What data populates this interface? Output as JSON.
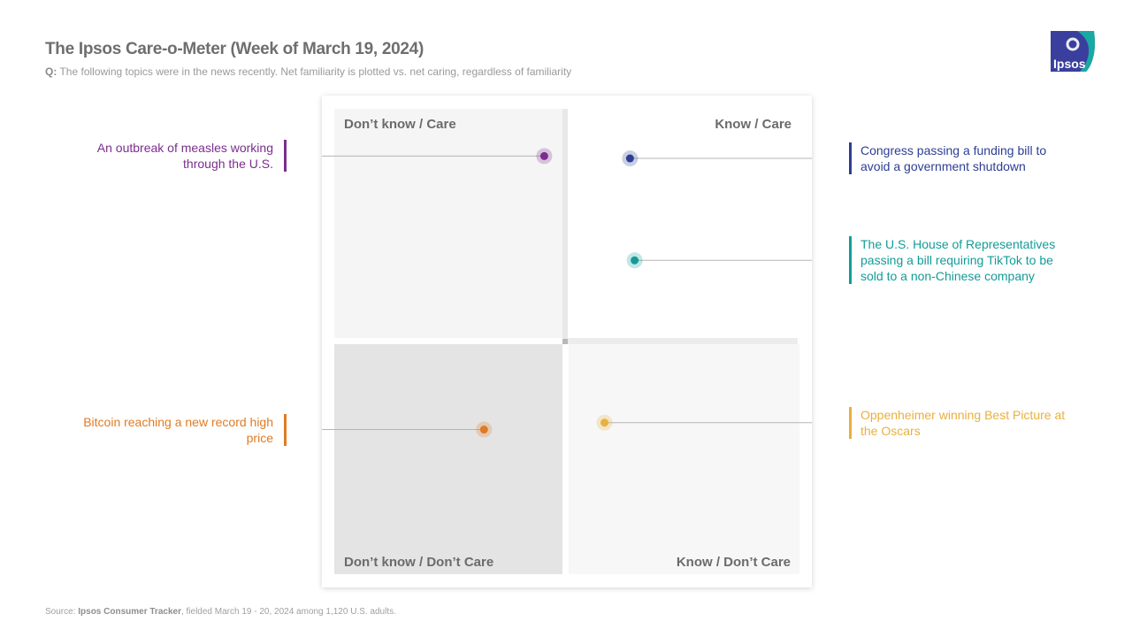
{
  "header": {
    "title": "The Ipsos Care-o-Meter (Week of March 19, 2024)",
    "q_prefix": "Q:",
    "question": "The following topics were in the news recently. Net familiarity is plotted vs. net caring, regardless of familiarity"
  },
  "logo": {
    "text": "Ipsos",
    "color": "#3a3f9e",
    "accent": "#19a9a3"
  },
  "quadrants": {
    "top_left": "Don’t know / Care",
    "top_right": "Know / Care",
    "bottom_left": "Don’t know / Don’t Care",
    "bottom_right": "Know / Don’t Care"
  },
  "chart_data": {
    "type": "scatter",
    "title": "The Ipsos Care-o-Meter (Week of March 19, 2024)",
    "xlabel": "",
    "ylabel": "",
    "xlim": [
      -100,
      100
    ],
    "ylim": [
      -100,
      100
    ],
    "grid": false,
    "points": [
      {
        "label": "An outbreak of measles working through the U.S.",
        "x": -9,
        "y": 80,
        "color": "#7b2d8e",
        "side": "left"
      },
      {
        "label": "Congress passing a funding bill to avoid a government shutdown",
        "x": 28,
        "y": 79,
        "color": "#2c3e93",
        "side": "right"
      },
      {
        "label": "The U.S. House of Representatives passing a bill requiring TikTok to be sold to a non-Chinese company",
        "x": 30,
        "y": 35,
        "color": "#129c98",
        "side": "right"
      },
      {
        "label": "Bitcoin reaching a new record high price",
        "x": -35,
        "y": -38,
        "color": "#e07b24",
        "side": "left"
      },
      {
        "label": "Oppenheimer winning Best Picture at the Oscars",
        "x": 17,
        "y": -35,
        "color": "#e8b03f",
        "side": "right"
      }
    ]
  },
  "footer": {
    "source_prefix": "Source:",
    "source_name": "Ipsos Consumer Tracker",
    "source_rest": ", fielded March 19 - 20, 2024 among 1,120 U.S. adults."
  }
}
